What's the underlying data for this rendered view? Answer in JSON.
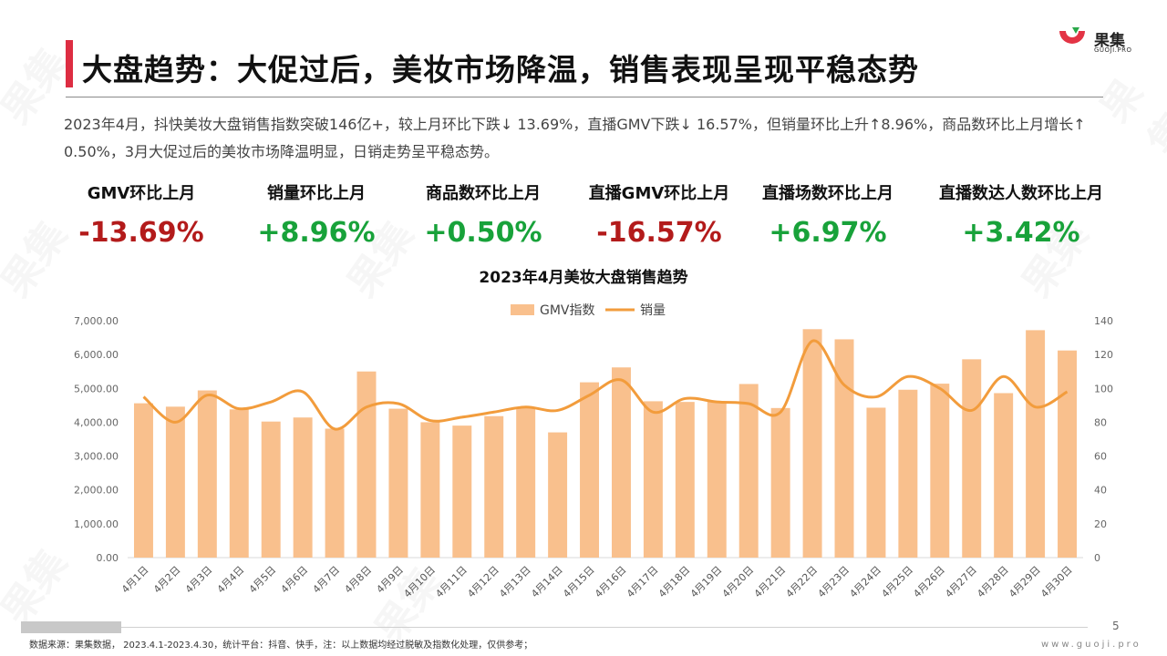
{
  "title": "大盘趋势：大促过后，美妆市场降温，销售表现呈现平稳态势",
  "logo": {
    "name": "果集",
    "sub": "GUOJI.PRO",
    "watermark": "果集"
  },
  "summary": "2023年4月，抖快美妆大盘销售指数突破146亿+，较上月环比下跌↓ 13.69%，直播GMV下跌↓ 16.57%，但销量环比上升↑8.96%，商品数环比上月增长↑ 0.50%，3月大促过后的美妆市场降温明显，日销走势呈平稳态势。",
  "kpis": [
    {
      "label": "GMV环比上月",
      "value": "-13.69%",
      "trend": "neg"
    },
    {
      "label": "销量环比上月",
      "value": "+8.96%",
      "trend": "pos"
    },
    {
      "label": "商品数环比上月",
      "value": "+0.50%",
      "trend": "pos"
    },
    {
      "label": "直播GMV环比上月",
      "value": "-16.57%",
      "trend": "neg"
    },
    {
      "label": "直播场数环比上月",
      "value": "+6.97%",
      "trend": "pos"
    },
    {
      "label": "直播数达人数环比上月",
      "value": "+3.42%",
      "trend": "pos"
    }
  ],
  "chart_data": {
    "type": "bar",
    "title": "2023年4月美妆大盘销售趋势",
    "categories": [
      "4月1日",
      "4月2日",
      "4月3日",
      "4月4日",
      "4月5日",
      "4月6日",
      "4月7日",
      "4月8日",
      "4月9日",
      "4月10日",
      "4月11日",
      "4月12日",
      "4月13日",
      "4月14日",
      "4月15日",
      "4月16日",
      "4月17日",
      "4月18日",
      "4月19日",
      "4月20日",
      "4月21日",
      "4月22日",
      "4月23日",
      "4月24日",
      "4月25日",
      "4月26日",
      "4月27日",
      "4月28日",
      "4月29日",
      "4月30日"
    ],
    "series": [
      {
        "name": "GMV指数",
        "type": "bar",
        "axis": "left",
        "color": "#f9c08d",
        "values": [
          4560,
          4460,
          4940,
          4380,
          4020,
          4140,
          3810,
          5500,
          4400,
          4000,
          3900,
          4180,
          4440,
          3700,
          5180,
          5620,
          4620,
          4600,
          4620,
          5130,
          4420,
          6750,
          6450,
          4430,
          4960,
          5140,
          5860,
          4860,
          6720,
          6120
        ]
      },
      {
        "name": "销量",
        "type": "line",
        "axis": "right",
        "color": "#f29c3c",
        "values": [
          95,
          80,
          96,
          88,
          92,
          98,
          76,
          89,
          91,
          81,
          83,
          86,
          89,
          87,
          96,
          105,
          86,
          94,
          92,
          91,
          86,
          128,
          102,
          95,
          107,
          100,
          87,
          107,
          89,
          98
        ]
      }
    ],
    "y_left": {
      "min": 0,
      "max": 7000,
      "step": 1000,
      "format": "0.00"
    },
    "y_right": {
      "min": 0,
      "max": 140,
      "step": 20
    },
    "legend": "top-center",
    "grid": false
  },
  "footer": {
    "source": "数据来源：果集数据，  2023.4.1-2023.4.30，统计平台：抖音、快手，注：以上数据均经过脱敏及指数化处理，仅供参考；",
    "page": "5",
    "website": "www.guoji.pro"
  }
}
